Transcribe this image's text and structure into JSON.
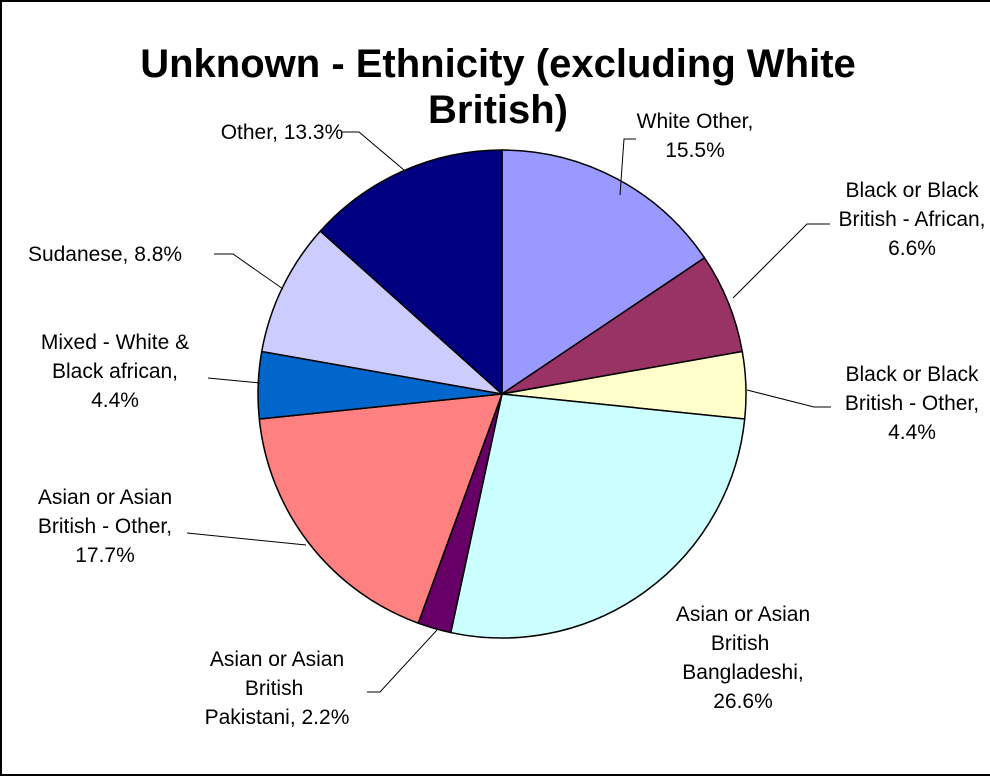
{
  "chart_data": {
    "type": "pie",
    "title": "Unknown - Ethnicity (excluding White British)",
    "slices": [
      {
        "name": "White Other",
        "value": 15.5,
        "label": "15.5%",
        "color": "#9999FF"
      },
      {
        "name": "Black or Black British - African",
        "value": 6.6,
        "label": "6.6%",
        "color": "#993366"
      },
      {
        "name": "Black or Black British - Other",
        "value": 4.4,
        "label": "4.4%",
        "color": "#FFFFCC"
      },
      {
        "name": "Asian or Asian British - Bangladeshi",
        "value": 26.6,
        "label": "26.6%",
        "color": "#CCFFFF"
      },
      {
        "name": "Asian or Asian British - Pakistani",
        "value": 2.2,
        "label": "2.2%",
        "color": "#660066"
      },
      {
        "name": "Asian or Asian British - Other",
        "value": 17.7,
        "label": "17.7%",
        "color": "#FF8080"
      },
      {
        "name": "Mixed - White & Black african",
        "value": 4.4,
        "label": "4.4%",
        "color": "#0066CC"
      },
      {
        "name": "Sudanese",
        "value": 8.8,
        "label": "8.8%",
        "color": "#CCCCFF"
      },
      {
        "name": "Other",
        "value": 13.3,
        "label": "13.3%",
        "color": "#000080"
      }
    ]
  }
}
